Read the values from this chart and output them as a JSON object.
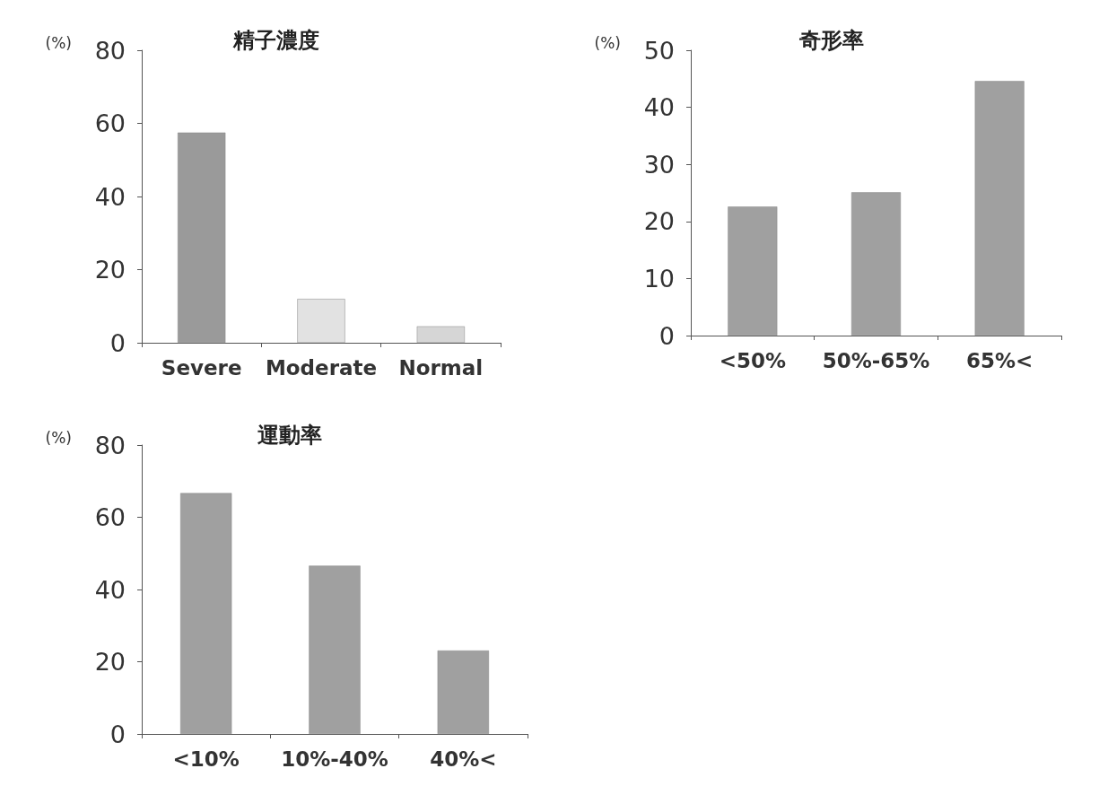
{
  "chart_data": [
    {
      "type": "bar",
      "title": "精子濃度",
      "ylabel": "(%)",
      "categories": [
        "Severe",
        "Moderate",
        "Normal"
      ],
      "colors": [
        "#9a9a9a",
        "#e2e2e2",
        "#d6d6d6"
      ],
      "values": [
        57.5,
        12,
        4.5
      ],
      "ylim": [
        0,
        80
      ],
      "yticks": [
        0,
        20,
        40,
        60,
        80
      ]
    },
    {
      "type": "bar",
      "title": "奇形率",
      "ylabel": "(%)",
      "categories": [
        "<50%",
        "50%-65%",
        "65%<"
      ],
      "color": "#a0a0a0",
      "values": [
        22.6,
        25.1,
        44.6
      ],
      "ylim": [
        0,
        50
      ],
      "yticks": [
        0,
        10,
        20,
        30,
        40,
        50
      ]
    },
    {
      "type": "bar",
      "title": "運動率",
      "ylabel": "(%)",
      "categories": [
        "<10%",
        "10%-40%",
        "40%<"
      ],
      "color": "#a0a0a0",
      "values": [
        66.7,
        46.6,
        23.1
      ],
      "ylim": [
        0,
        80
      ],
      "yticks": [
        0,
        20,
        40,
        60,
        80
      ]
    }
  ]
}
